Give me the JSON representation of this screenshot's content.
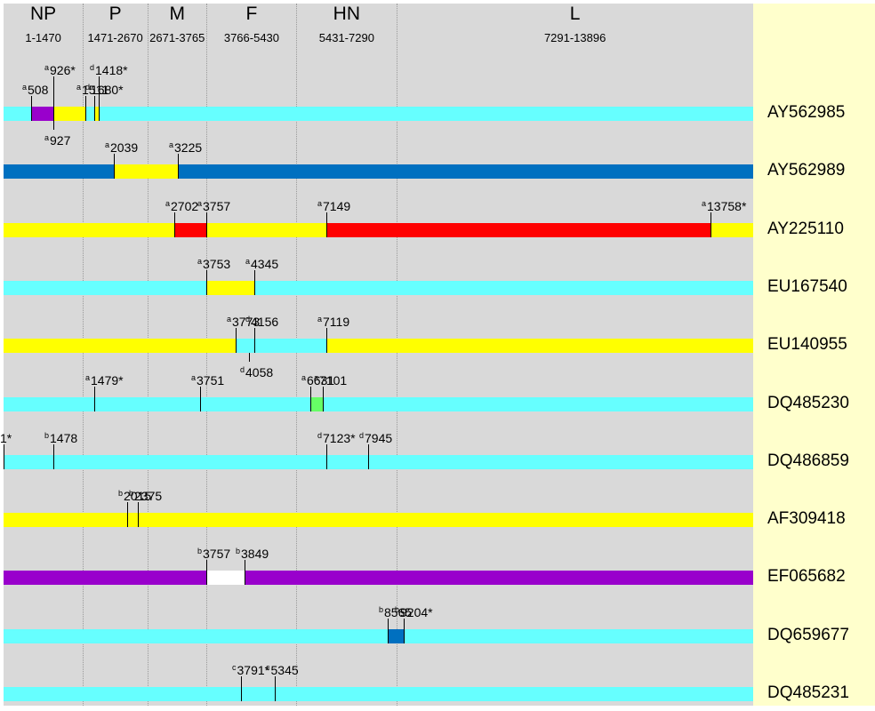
{
  "genes": [
    {
      "name": "NP",
      "range": "1-1470",
      "start": 1,
      "end": 1470
    },
    {
      "name": "P",
      "range": "1471-2670",
      "start": 1471,
      "end": 2670
    },
    {
      "name": "M",
      "range": "2671-3765",
      "start": 2671,
      "end": 3765
    },
    {
      "name": "F",
      "range": "3766-5430",
      "start": 3766,
      "end": 5430
    },
    {
      "name": "HN",
      "range": "5431-7290",
      "start": 5431,
      "end": 7290
    },
    {
      "name": "L",
      "range": "7291-13896",
      "start": 7291,
      "end": 13896
    }
  ],
  "genome_length": 13896,
  "colors": {
    "cyan": "#66ffff",
    "purple": "#9900cc",
    "yellow": "#ffff00",
    "blue": "#0070c0",
    "red": "#ff0000",
    "green": "#66ff66",
    "white": "#ffffff",
    "plot_background": "#d9d9d9",
    "label_strip": "#ffffcc"
  },
  "sequences": [
    {
      "accession": "AY562985",
      "base": "cyan",
      "segments": [
        {
          "from": 508,
          "to": 926,
          "color": "purple"
        },
        {
          "from": 927,
          "to": 1511,
          "color": "yellow"
        },
        {
          "from": 1680,
          "to": 1760,
          "color": "yellow"
        }
      ],
      "breakpoints": [
        {
          "sup": "a",
          "text": "508",
          "pos": 508,
          "side": "above",
          "level": 1
        },
        {
          "sup": "a",
          "text": "926*",
          "pos": 926,
          "side": "above",
          "level": 2
        },
        {
          "sup": "a",
          "text": "927",
          "pos": 927,
          "side": "below",
          "level": 1
        },
        {
          "sup": "a",
          "text": "1511",
          "pos": 1511,
          "side": "above",
          "level": 1
        },
        {
          "sup": "d",
          "text": "1418*",
          "pos": 1760,
          "side": "above",
          "level": 2
        },
        {
          "sup": "d",
          "text": "1680*",
          "pos": 1680,
          "side": "above",
          "level": 1
        }
      ]
    },
    {
      "accession": "AY562989",
      "base": "blue",
      "segments": [
        {
          "from": 2039,
          "to": 3225,
          "color": "yellow"
        }
      ],
      "breakpoints": [
        {
          "sup": "a",
          "text": "2039",
          "pos": 2039,
          "side": "above",
          "level": 1
        },
        {
          "sup": "a",
          "text": "3225",
          "pos": 3225,
          "side": "above",
          "level": 1
        }
      ]
    },
    {
      "accession": "AY225110",
      "base": "yellow",
      "segments": [
        {
          "from": 3170,
          "to": 3757,
          "color": "red"
        },
        {
          "from": 5990,
          "to": 13110,
          "color": "red"
        }
      ],
      "breakpoints": [
        {
          "sup": "a",
          "text": "2702",
          "pos": 3170,
          "side": "above",
          "level": 1
        },
        {
          "sup": "a",
          "text": "3757",
          "pos": 3757,
          "side": "above",
          "level": 1
        },
        {
          "sup": "a",
          "text": "7149",
          "pos": 5990,
          "side": "above",
          "level": 1
        },
        {
          "sup": "a",
          "text": "13758*",
          "pos": 13110,
          "side": "above",
          "level": 1
        }
      ]
    },
    {
      "accession": "EU167540",
      "base": "cyan",
      "segments": [
        {
          "from": 3753,
          "to": 4650,
          "color": "yellow"
        }
      ],
      "breakpoints": [
        {
          "sup": "a",
          "text": "3753",
          "pos": 3753,
          "side": "above",
          "level": 1
        },
        {
          "sup": "a",
          "text": "4345",
          "pos": 4650,
          "side": "above",
          "level": 1
        }
      ]
    },
    {
      "accession": "EU140955",
      "base": "yellow",
      "segments": [
        {
          "from": 4300,
          "to": 5990,
          "color": "cyan"
        }
      ],
      "breakpoints": [
        {
          "sup": "a",
          "text": "3773",
          "pos": 4300,
          "side": "above",
          "level": 1
        },
        {
          "sup": "d",
          "text": "4156",
          "pos": 4650,
          "side": "above",
          "level": 1
        },
        {
          "sup": "d",
          "text": "4058",
          "pos": 4550,
          "side": "below",
          "level": 1
        },
        {
          "sup": "a",
          "text": "7119",
          "pos": 5990,
          "side": "above",
          "level": 1
        }
      ]
    },
    {
      "accession": "DQ485230",
      "base": "cyan",
      "segments": [
        {
          "from": 5690,
          "to": 5920,
          "color": "green"
        }
      ],
      "breakpoints": [
        {
          "sup": "a",
          "text": "1479*",
          "pos": 1680,
          "side": "above",
          "level": 1
        },
        {
          "sup": "a",
          "text": "3751",
          "pos": 3650,
          "side": "above",
          "level": 1
        },
        {
          "sup": "a",
          "text": "6631",
          "pos": 5690,
          "side": "above",
          "level": 1
        },
        {
          "sup": "a",
          "text": "7101",
          "pos": 5920,
          "side": "above",
          "level": 1
        }
      ]
    },
    {
      "accession": "DQ486859",
      "base": "cyan",
      "segments": [],
      "breakpoints": [
        {
          "sup": "b",
          "text": "1*",
          "pos": 1,
          "side": "above",
          "level": 1
        },
        {
          "sup": "b",
          "text": "1478",
          "pos": 920,
          "side": "above",
          "level": 1
        },
        {
          "sup": "d",
          "text": "7123*",
          "pos": 5990,
          "side": "above",
          "level": 1
        },
        {
          "sup": "d",
          "text": "7945",
          "pos": 6760,
          "side": "above",
          "level": 1
        }
      ]
    },
    {
      "accession": "AF309418",
      "base": "yellow",
      "segments": [],
      "breakpoints": [
        {
          "sup": "b",
          "text": "2015",
          "pos": 2285,
          "side": "above",
          "level": 1
        },
        {
          "sup": "b",
          "text": "2375",
          "pos": 2490,
          "side": "above",
          "level": 1
        }
      ]
    },
    {
      "accession": "EF065682",
      "base": "purple",
      "segments": [
        {
          "from": 3757,
          "to": 4475,
          "color": "white"
        }
      ],
      "breakpoints": [
        {
          "sup": "b",
          "text": "3757",
          "pos": 3757,
          "side": "above",
          "level": 1
        },
        {
          "sup": "b",
          "text": "3849",
          "pos": 4475,
          "side": "above",
          "level": 1
        }
      ]
    },
    {
      "accession": "DQ659677",
      "base": "cyan",
      "segments": [
        {
          "from": 7120,
          "to": 7420,
          "color": "blue"
        }
      ],
      "breakpoints": [
        {
          "sup": "b",
          "text": "8565",
          "pos": 7120,
          "side": "above",
          "level": 1
        },
        {
          "sup": "b",
          "text": "9204*",
          "pos": 7420,
          "side": "above",
          "level": 1
        }
      ]
    },
    {
      "accession": "DQ485231",
      "base": "cyan",
      "segments": [],
      "breakpoints": [
        {
          "sup": "c",
          "text": "3791*",
          "pos": 4400,
          "side": "above",
          "level": 1
        },
        {
          "sup": "c",
          "text": "5345",
          "pos": 5030,
          "side": "above",
          "level": 1
        }
      ]
    }
  ]
}
